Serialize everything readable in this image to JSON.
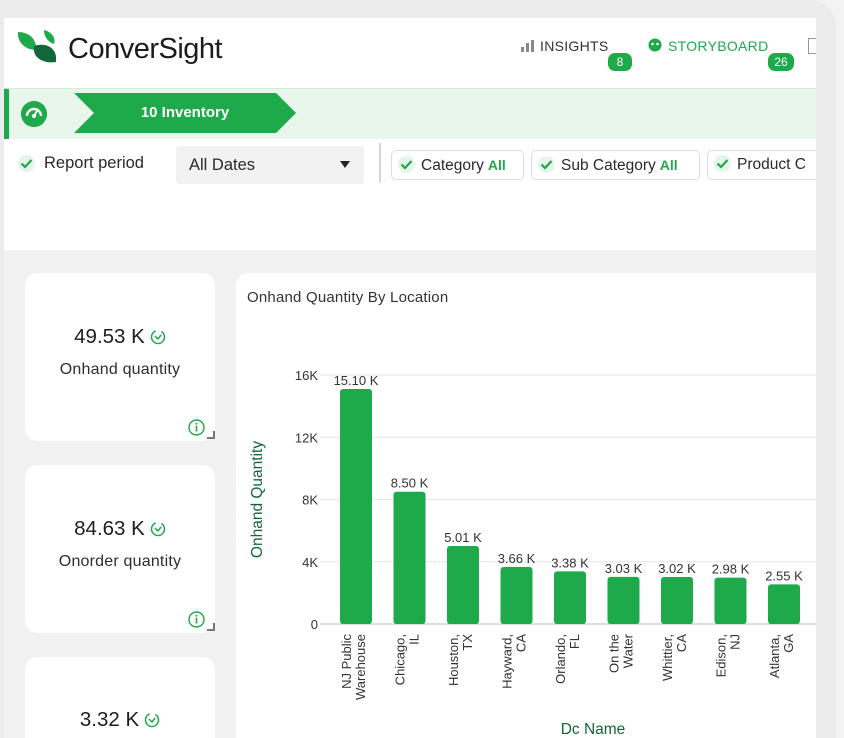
{
  "brand": {
    "name": "ConverSight"
  },
  "nav": {
    "insights": {
      "label": "INSIGHTS",
      "count": "8",
      "icon": "bar-chart-icon"
    },
    "storyboard": {
      "label": "STORYBOARD",
      "count": "26",
      "icon": "storyboard-icon"
    }
  },
  "breadcrumb": {
    "label": "10 Inventory",
    "icon": "dashboard-gauge-icon"
  },
  "filters": {
    "report_period_label": "Report period",
    "report_period_value": "All Dates",
    "chips": [
      {
        "label": "Category",
        "value": "All"
      },
      {
        "label": "Sub Category",
        "value": "All"
      },
      {
        "label": "Product C"
      }
    ]
  },
  "kpis": [
    {
      "value": "49.53 K",
      "label": "Onhand quantity"
    },
    {
      "value": "84.63 K",
      "label": "Onorder quantity"
    },
    {
      "value": "3.32 K"
    }
  ],
  "colors": {
    "accent": "#1ea94b",
    "bar": "#1ea94b"
  },
  "chart_data": {
    "type": "bar",
    "title": "Onhand Quantity By Location",
    "xlabel": "Dc Name",
    "ylabel": "Onhand Quantity",
    "ylim": [
      0,
      16000
    ],
    "yticks": [
      0,
      4000,
      8000,
      12000,
      16000
    ],
    "ytick_labels": [
      "0",
      "4K",
      "8K",
      "12K",
      "16K"
    ],
    "grid": true,
    "categories": [
      [
        "NJ Public",
        "Warehouse"
      ],
      [
        "Chicago,",
        "IL"
      ],
      [
        "Houston,",
        "TX"
      ],
      [
        "Hayward,",
        "CA"
      ],
      [
        "Orlando,",
        "FL"
      ],
      [
        "On the",
        "Water"
      ],
      [
        "Whittier,",
        "CA"
      ],
      [
        "Edison,",
        "NJ"
      ],
      [
        "Atlanta,",
        "GA"
      ]
    ],
    "values": [
      15100,
      8500,
      5010,
      3660,
      3380,
      3030,
      3020,
      2980,
      2550
    ],
    "data_labels": [
      "15.10 K",
      "8.50 K",
      "5.01 K",
      "3.66 K",
      "3.38 K",
      "3.03 K",
      "3.02 K",
      "2.98 K",
      "2.55 K"
    ]
  }
}
